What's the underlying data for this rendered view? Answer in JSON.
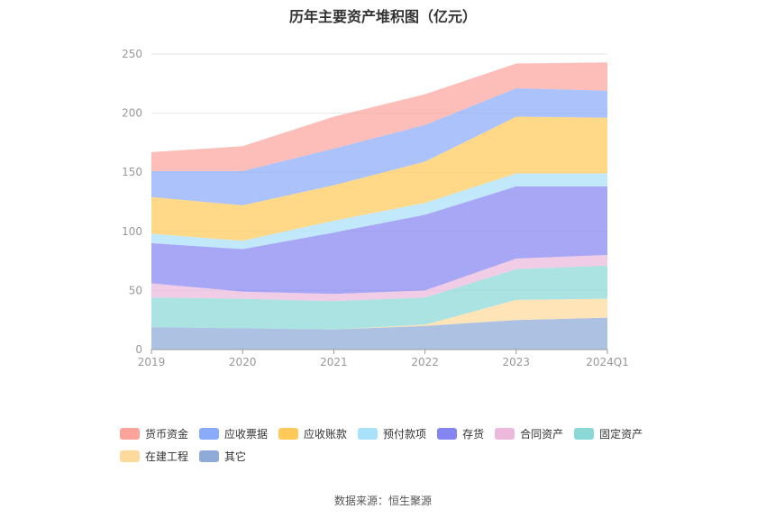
{
  "chart_data": {
    "type": "area",
    "stacked": true,
    "title": "历年主要资产堆积图（亿元）",
    "categories": [
      "2019",
      "2020",
      "2021",
      "2022",
      "2023",
      "2024Q1"
    ],
    "ylim": [
      0,
      250
    ],
    "yticks": [
      0,
      50,
      100,
      150,
      200,
      250
    ],
    "grid": true,
    "legend_position": "bottom",
    "series": [
      {
        "name": "其它",
        "color": "#8eaad8",
        "values": [
          19,
          18,
          17,
          20,
          25,
          27
        ]
      },
      {
        "name": "在建工程",
        "color": "#ffd99b",
        "values": [
          0,
          0,
          0,
          1,
          17,
          16
        ]
      },
      {
        "name": "固定资产",
        "color": "#8ad8d8",
        "values": [
          25,
          25,
          24,
          23,
          26,
          28
        ]
      },
      {
        "name": "合同资产",
        "color": "#ecb8dc",
        "values": [
          12,
          6,
          6,
          6,
          9,
          9
        ]
      },
      {
        "name": "存货",
        "color": "#8585f2",
        "values": [
          34,
          36,
          52,
          64,
          61,
          58
        ]
      },
      {
        "name": "预付款项",
        "color": "#a9e0fa",
        "values": [
          8,
          7,
          10,
          10,
          11,
          11
        ]
      },
      {
        "name": "应收账款",
        "color": "#ffca5a",
        "values": [
          31,
          30,
          30,
          35,
          48,
          47
        ]
      },
      {
        "name": "应收票据",
        "color": "#8aabfa",
        "values": [
          22,
          29,
          31,
          31,
          24,
          23
        ]
      },
      {
        "name": "货币资金",
        "color": "#fca49c",
        "values": [
          16,
          21,
          27,
          26,
          21,
          24
        ]
      }
    ],
    "legend_order": [
      "货币资金",
      "应收票据",
      "应收账款",
      "预付款项",
      "存货",
      "合同资产",
      "固定资产",
      "在建工程",
      "其它"
    ]
  },
  "source": "数据来源：恒生聚源"
}
